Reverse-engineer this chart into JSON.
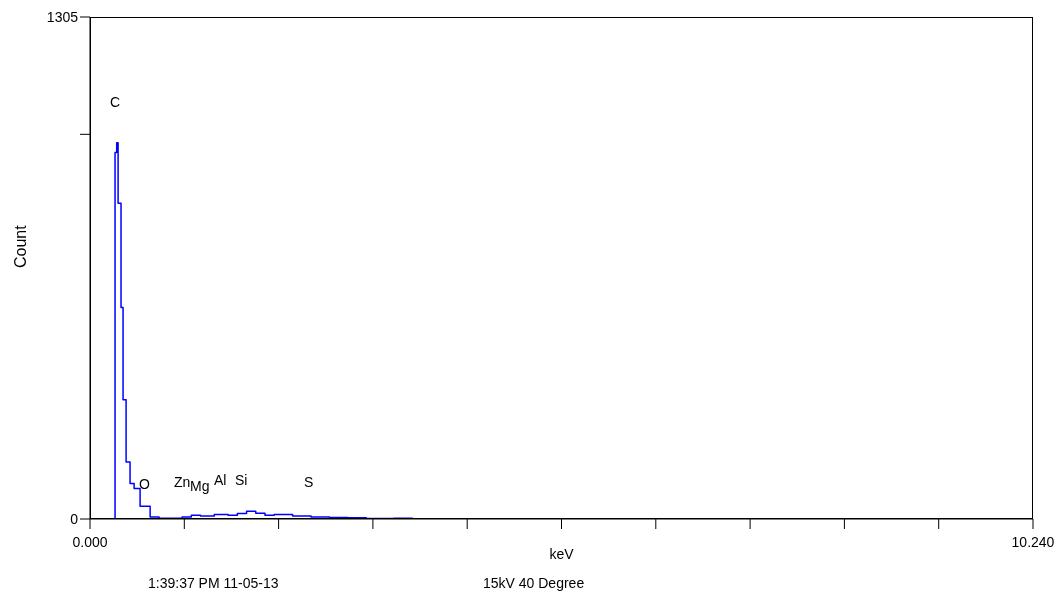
{
  "chart_data": {
    "type": "step",
    "xlabel": "keV",
    "ylabel": "Count",
    "x": [
      0.272,
      0.272,
      0.29,
      0.305,
      0.337,
      0.359,
      0.392,
      0.435,
      0.479,
      0.544,
      0.653,
      0.75,
      1.0,
      1.1,
      1.2,
      1.35,
      1.5,
      1.6,
      1.7,
      1.8,
      1.9,
      2.0,
      2.2,
      2.4,
      2.6,
      2.8,
      3.0,
      3.3,
      3.5
    ],
    "series": [
      {
        "color": "#0000ff",
        "values": [
          0,
          953,
          978,
          821,
          550,
          310,
          148,
          92,
          79,
          33,
          5,
          2,
          5,
          10,
          8,
          12,
          10,
          14,
          20,
          15,
          10,
          12,
          8,
          5,
          4,
          3,
          1,
          2,
          0
        ]
      }
    ],
    "xlim": [
      0,
      10.24
    ],
    "xticks": [
      {
        "value": 0,
        "label": "0.000"
      },
      {
        "value": 1.024,
        "label": null
      },
      {
        "value": 2.048,
        "label": null
      },
      {
        "value": 3.072,
        "label": null
      },
      {
        "value": 4.096,
        "label": null
      },
      {
        "value": 5.12,
        "label": null
      },
      {
        "value": 6.144,
        "label": null
      },
      {
        "value": 7.168,
        "label": null
      },
      {
        "value": 8.192,
        "label": null
      },
      {
        "value": 9.216,
        "label": null
      },
      {
        "value": 10.24,
        "label": "10.240"
      }
    ],
    "ylim": [
      0,
      1305
    ],
    "yticks": [
      0,
      {
        "value": 1000,
        "label": null
      },
      1305
    ],
    "grid": false,
    "legend": false,
    "marker": "none",
    "line_style": "solid",
    "annotations": [
      "C",
      "O",
      "Zn",
      "Mg",
      "Al",
      "Si",
      "S",
      "1:39:37 PM  11-05-13",
      "15kV 40 Degree"
    ]
  }
}
